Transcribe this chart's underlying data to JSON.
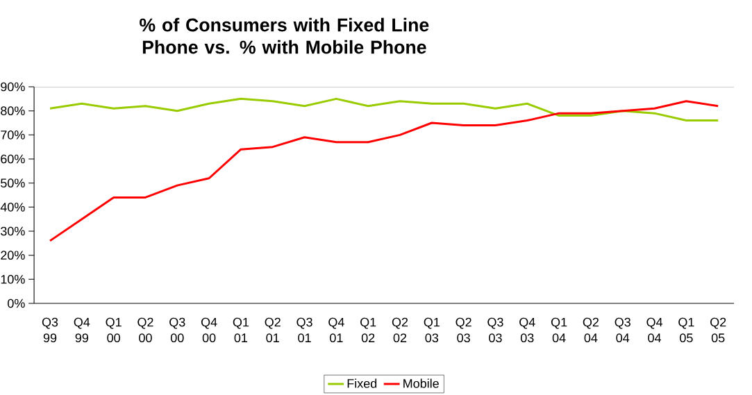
{
  "chart_data": {
    "type": "line",
    "title": "% of Consumers with Fixed Line Phone vs. % with Mobile Phone",
    "categories": [
      "Q3 99",
      "Q4 99",
      "Q1 00",
      "Q2 00",
      "Q3 00",
      "Q4 00",
      "Q1 01",
      "Q2 01",
      "Q3 01",
      "Q4 01",
      "Q1 02",
      "Q2 02",
      "Q1 03",
      "Q2 03",
      "Q3 03",
      "Q4 03",
      "Q1 04",
      "Q2 04",
      "Q3 04",
      "Q4 04",
      "Q1 05",
      "Q2 05"
    ],
    "series": [
      {
        "name": "Fixed",
        "color": "#99cc00",
        "values": [
          81,
          83,
          81,
          82,
          80,
          83,
          85,
          84,
          82,
          85,
          82,
          84,
          83,
          83,
          81,
          83,
          78,
          78,
          80,
          79,
          76,
          76
        ]
      },
      {
        "name": "Mobile",
        "color": "#ff0000",
        "values": [
          26,
          35,
          44,
          44,
          49,
          52,
          64,
          65,
          69,
          67,
          67,
          70,
          75,
          74,
          74,
          76,
          79,
          79,
          80,
          81,
          84,
          82
        ]
      }
    ],
    "ylim": [
      0,
      90
    ],
    "yticks": [
      {
        "value": 0,
        "label": "0%"
      },
      {
        "value": 10,
        "label": "10%"
      },
      {
        "value": 20,
        "label": "20%"
      },
      {
        "value": 30,
        "label": "30%"
      },
      {
        "value": 40,
        "label": "40%"
      },
      {
        "value": 50,
        "label": "50%"
      },
      {
        "value": 60,
        "label": "60%"
      },
      {
        "value": 70,
        "label": "70%"
      },
      {
        "value": 80,
        "label": "80%"
      },
      {
        "value": 90,
        "label": "90%"
      }
    ],
    "grid": false,
    "legend": "bottom",
    "marker": "none",
    "line_style": "solid"
  }
}
